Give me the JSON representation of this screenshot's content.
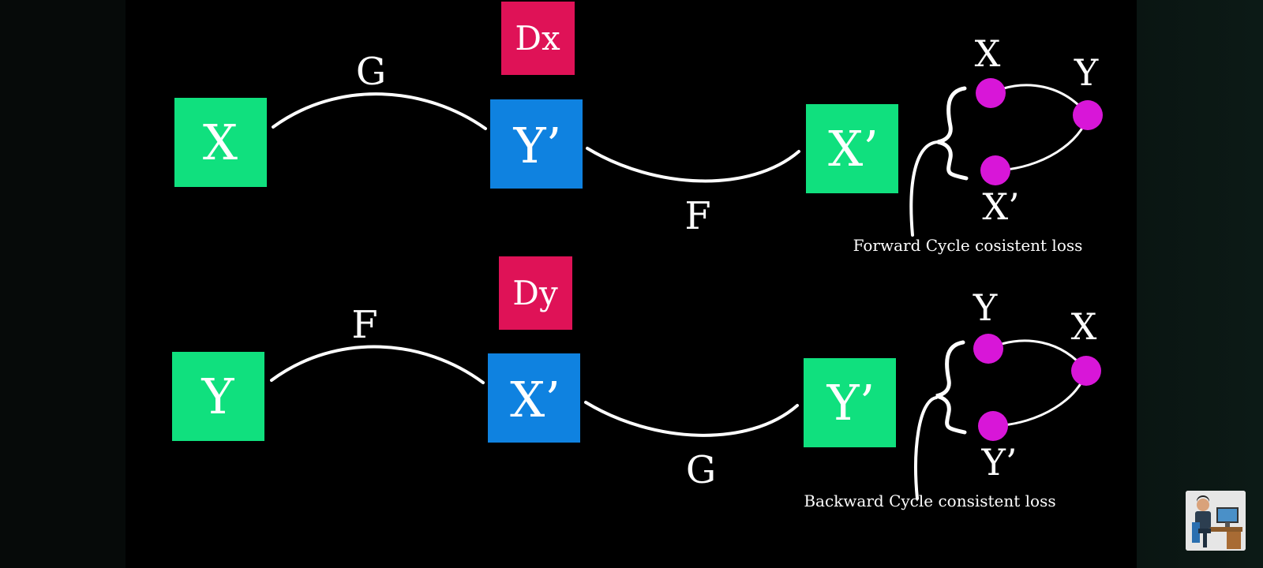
{
  "forward": {
    "input": "X",
    "generator_1": "G",
    "discriminator": "Dx",
    "output_1": "Y’",
    "generator_2": "F",
    "output_2": "X’",
    "cycle_nodes": [
      "X",
      "Y",
      "X’"
    ],
    "caption": "Forward Cycle cosistent loss"
  },
  "backward": {
    "input": "Y",
    "generator_1": "F",
    "discriminator": "Dy",
    "output_1": "X’",
    "generator_2": "G",
    "output_2": "Y’",
    "cycle_nodes": [
      "Y",
      "X",
      "Y’"
    ],
    "caption": "Backward Cycle consistent loss"
  },
  "colors": {
    "input_box": "#10e07e",
    "generated_box": "#0f82e0",
    "discriminator_box": "#df1257",
    "cycle_node": "#d816d8",
    "background": "#000000",
    "line": "#ffffff"
  },
  "icons": {
    "presenter": "presenter-avatar-icon"
  }
}
